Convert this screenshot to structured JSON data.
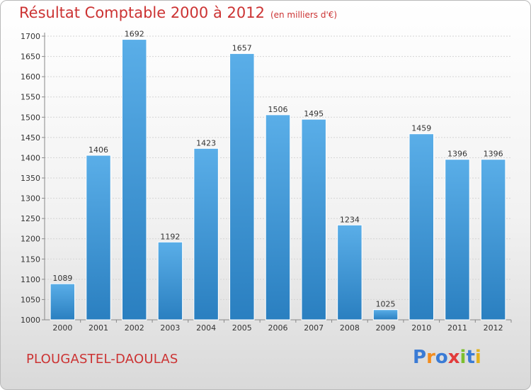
{
  "chart_data": {
    "type": "bar",
    "title": "Résultat Comptable 2000 à 2012",
    "subtitle": "(en milliers d'€)",
    "categories": [
      "2000",
      "2001",
      "2002",
      "2003",
      "2004",
      "2005",
      "2006",
      "2007",
      "2008",
      "2009",
      "2010",
      "2011",
      "2012"
    ],
    "values": [
      1089,
      1406,
      1692,
      1192,
      1423,
      1657,
      1506,
      1495,
      1234,
      1025,
      1459,
      1396,
      1396
    ],
    "ylim": [
      1000,
      1700
    ],
    "yticks": [
      1000,
      1050,
      1100,
      1150,
      1200,
      1250,
      1300,
      1350,
      1400,
      1450,
      1500,
      1550,
      1600,
      1650,
      1700
    ],
    "grid": true,
    "bar_color_light": "#5aaee8",
    "bar_color_dark": "#2a7fc0",
    "title_color": "#cc3333"
  },
  "footer": {
    "place_name": "PLOUGASTEL-DAOULAS",
    "logo_text": "Proxiti",
    "logo_letter_colors": [
      "#3a7bd5",
      "#f28c1e",
      "#3a7bd5",
      "#e23b3b",
      "#7cbf2f",
      "#3a7bd5",
      "#e2b21e"
    ]
  }
}
